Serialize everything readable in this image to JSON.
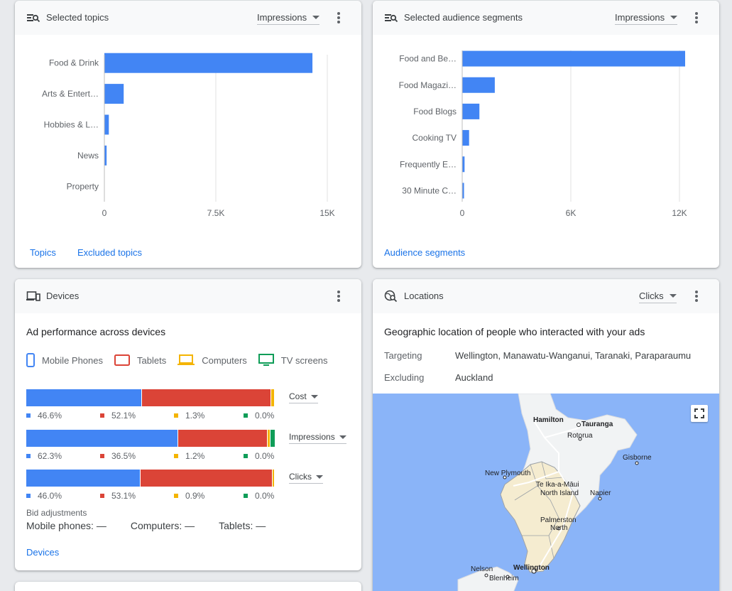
{
  "topics": {
    "title": "Selected topics",
    "metric": "Impressions",
    "links": [
      "Topics",
      "Excluded topics"
    ],
    "chart_data": {
      "type": "bar",
      "orientation": "horizontal",
      "categories": [
        "Food & Drink",
        "Arts & Entert…",
        "Hobbies & L…",
        "News",
        "Property"
      ],
      "values": [
        14000,
        1300,
        300,
        150,
        0
      ],
      "xlim": [
        0,
        15000
      ],
      "xticks": [
        "0",
        "7.5K",
        "15K"
      ],
      "xtick_values": [
        0,
        7500,
        15000
      ],
      "color": "#4285f4"
    }
  },
  "audience": {
    "title": "Selected audience segments",
    "metric": "Impressions",
    "links": [
      "Audience segments"
    ],
    "chart_data": {
      "type": "bar",
      "orientation": "horizontal",
      "categories": [
        "Food and Be…",
        "Food Magazi…",
        "Food Blogs",
        "Cooking TV",
        "Frequently E…",
        "30 Minute C…"
      ],
      "values": [
        12400,
        1800,
        950,
        380,
        130,
        100
      ],
      "xlim": [
        0,
        12000
      ],
      "xticks": [
        "0",
        "6K",
        "12K"
      ],
      "xtick_values": [
        0,
        6000,
        12000
      ],
      "color": "#4285f4"
    }
  },
  "devices": {
    "title": "Devices",
    "subtitle": "Ad performance across devices",
    "legend": [
      "Mobile Phones",
      "Tablets",
      "Computers",
      "TV screens"
    ],
    "colors": [
      "#4285f4",
      "#db4437",
      "#f4b400",
      "#0f9d58"
    ],
    "rows": [
      {
        "metric": "Cost",
        "values": [
          46.6,
          52.1,
          1.3,
          0.0
        ],
        "labels": [
          "46.6%",
          "52.1%",
          "1.3%",
          "0.0%"
        ]
      },
      {
        "metric": "Impressions",
        "values": [
          62.3,
          36.5,
          1.2,
          0.0
        ],
        "labels": [
          "62.3%",
          "36.5%",
          "1.2%",
          "0.0%"
        ]
      },
      {
        "metric": "Clicks",
        "values": [
          46.0,
          53.1,
          0.9,
          0.0
        ],
        "labels": [
          "46.0%",
          "53.1%",
          "0.9%",
          "0.0%"
        ]
      }
    ],
    "bid_title": "Bid adjustments",
    "bids": [
      "Mobile phones: —",
      "Computers: —",
      "Tablets: —"
    ],
    "link": "Devices"
  },
  "locations": {
    "title": "Locations",
    "metric": "Clicks",
    "subtitle": "Geographic location of people who interacted with your ads",
    "targeting_label": "Targeting",
    "targeting_value": "Wellington, Manawatu-Wanganui, Taranaki, Paraparaumu",
    "excluding_label": "Excluding",
    "excluding_value": "Auckland",
    "cities": [
      "Hamilton",
      "Tauranga",
      "Rotorua",
      "Gisborne",
      "New Plymouth",
      "Te Ika-a-Māui",
      "North Island",
      "Napier",
      "Palmerston",
      "North",
      "Nelson",
      "Wellington",
      "Blenheim"
    ]
  }
}
